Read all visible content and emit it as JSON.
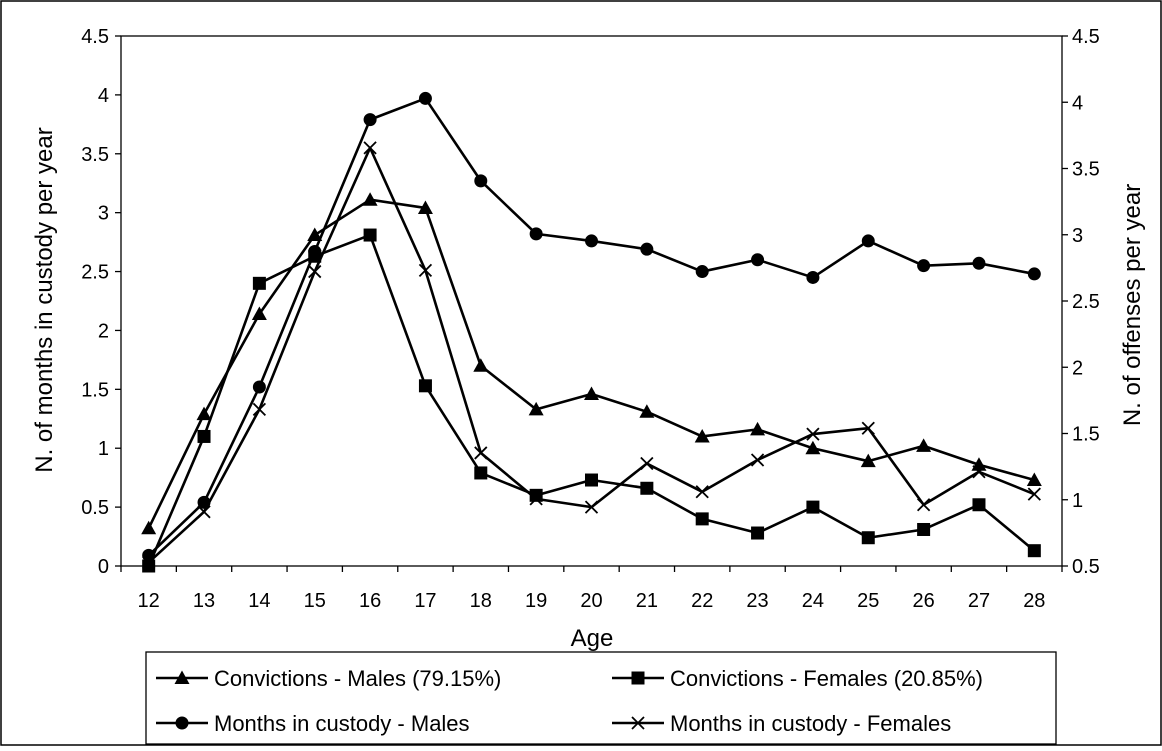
{
  "chart_data": {
    "type": "line",
    "title": "",
    "xlabel": "Age",
    "ylabel": "N. of months in custody per year",
    "ylabel_right": "N. of offenses per year",
    "x": [
      12,
      13,
      14,
      15,
      16,
      17,
      18,
      19,
      20,
      21,
      22,
      23,
      24,
      25,
      26,
      27,
      28
    ],
    "ylim": [
      0,
      4.5
    ],
    "yticks": [
      "0",
      "0.5",
      "1",
      "1.5",
      "2",
      "2.5",
      "3",
      "3.5",
      "4",
      "4.5"
    ],
    "ylim_right": [
      0.5,
      4.5
    ],
    "yticks_right": [
      "0.5",
      "1",
      "1.5",
      "2",
      "2.5",
      "3",
      "3.5",
      "4",
      "4.5"
    ],
    "grid": false,
    "legend_position": "bottom",
    "series": [
      {
        "name": "Convictions - Males (79.15%)",
        "marker": "triangle",
        "axis": "left",
        "values": [
          0.32,
          1.29,
          2.14,
          2.81,
          3.11,
          3.04,
          1.7,
          1.33,
          1.46,
          1.31,
          1.1,
          1.16,
          1.0,
          0.89,
          1.02,
          0.86,
          0.73
        ]
      },
      {
        "name": "Convictions - Females (20.85%)",
        "marker": "square",
        "axis": "left",
        "values": [
          0.0,
          1.1,
          2.4,
          2.63,
          2.81,
          1.53,
          0.79,
          0.6,
          0.73,
          0.66,
          0.4,
          0.28,
          0.5,
          0.24,
          0.31,
          0.52,
          0.13
        ]
      },
      {
        "name": "Months in custody - Males",
        "marker": "circle",
        "axis": "left",
        "values": [
          0.09,
          0.54,
          1.52,
          2.67,
          3.79,
          3.97,
          3.27,
          2.82,
          2.76,
          2.69,
          2.5,
          2.6,
          2.45,
          2.76,
          2.55,
          2.57,
          2.48
        ]
      },
      {
        "name": "Months in custody - Females",
        "marker": "cross",
        "axis": "left",
        "values": [
          0.03,
          0.46,
          1.33,
          2.5,
          3.55,
          2.51,
          0.96,
          0.57,
          0.5,
          0.87,
          0.63,
          0.9,
          1.12,
          1.17,
          0.52,
          0.8,
          0.61
        ]
      }
    ]
  }
}
